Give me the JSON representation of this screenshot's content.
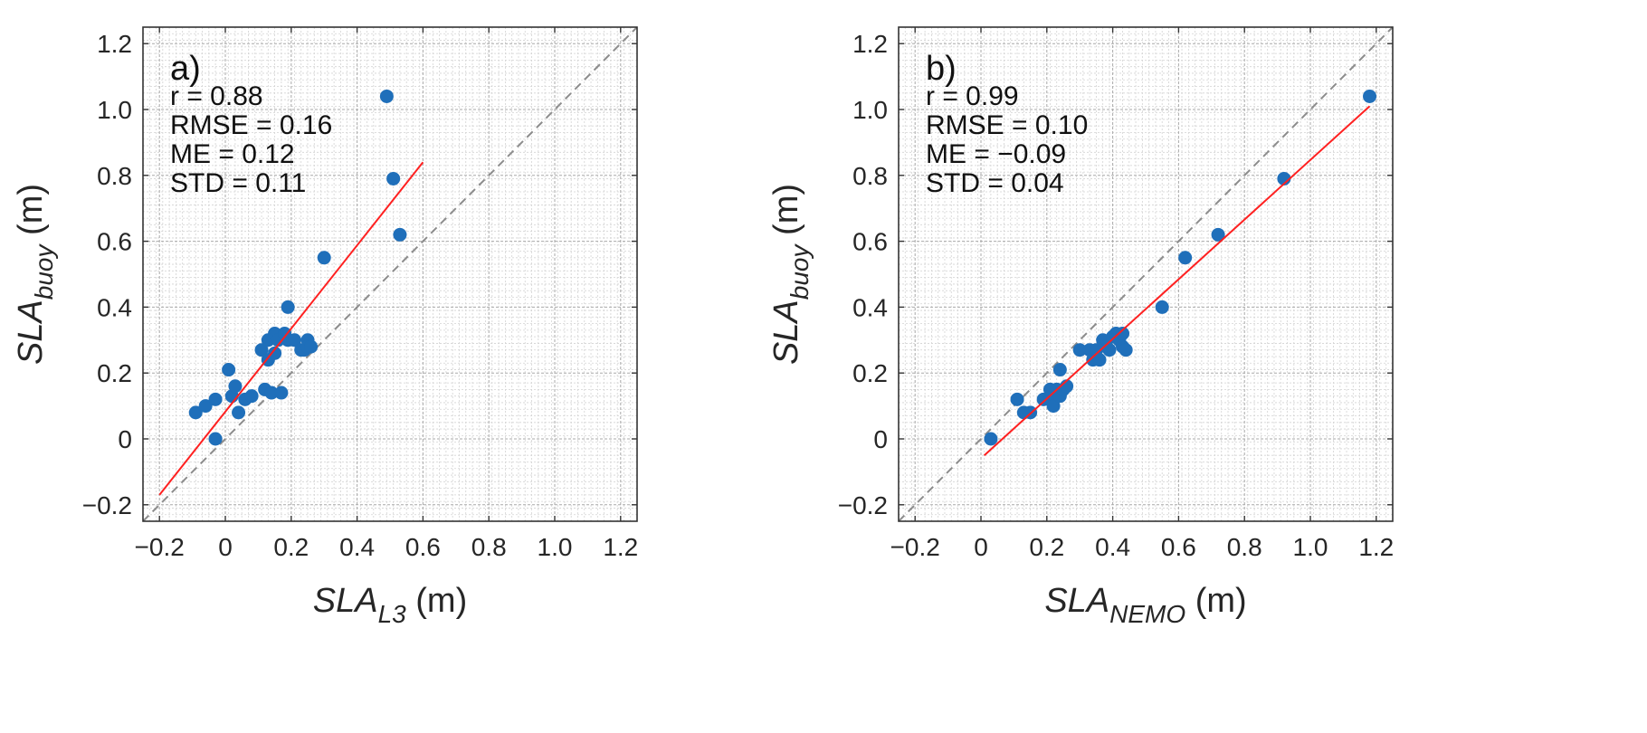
{
  "chart_data": [
    {
      "type": "scatter",
      "panel_label": "a)",
      "stats": [
        "r = 0.88",
        "RMSE = 0.16",
        "ME = 0.12",
        "STD = 0.11"
      ],
      "xlabel": {
        "main": "SLA",
        "sub": "L3",
        "unit": " (m)"
      },
      "ylabel": {
        "main": "SLA",
        "sub": "buoy",
        "unit": " (m)"
      },
      "xlim": [
        -0.25,
        1.25
      ],
      "ylim": [
        -0.25,
        1.25
      ],
      "ticks": [
        -0.2,
        0,
        0.2,
        0.4,
        0.6,
        0.8,
        1.0,
        1.2
      ],
      "tick_labels": [
        "−0.2",
        "0",
        "0.2",
        "0.4",
        "0.6",
        "0.8",
        "1.0",
        "1.2"
      ],
      "grid": true,
      "reference_line": {
        "style": "dashed",
        "color": "#8c8c8c",
        "x": [
          -0.25,
          1.25
        ],
        "y": [
          -0.25,
          1.25
        ]
      },
      "fit_line": {
        "color": "#ff2020",
        "x": [
          -0.2,
          0.6
        ],
        "y": [
          -0.17,
          0.84
        ]
      },
      "marker_color": "#1f6fba",
      "points": [
        [
          -0.09,
          0.08
        ],
        [
          -0.06,
          0.1
        ],
        [
          -0.03,
          0.12
        ],
        [
          -0.03,
          0.0
        ],
        [
          0.01,
          0.21
        ],
        [
          0.02,
          0.13
        ],
        [
          0.03,
          0.16
        ],
        [
          0.04,
          0.08
        ],
        [
          0.06,
          0.12
        ],
        [
          0.08,
          0.13
        ],
        [
          0.11,
          0.27
        ],
        [
          0.12,
          0.15
        ],
        [
          0.13,
          0.24
        ],
        [
          0.13,
          0.3
        ],
        [
          0.14,
          0.14
        ],
        [
          0.15,
          0.32
        ],
        [
          0.15,
          0.26
        ],
        [
          0.16,
          0.3
        ],
        [
          0.17,
          0.14
        ],
        [
          0.18,
          0.32
        ],
        [
          0.19,
          0.4
        ],
        [
          0.19,
          0.3
        ],
        [
          0.21,
          0.3
        ],
        [
          0.23,
          0.27
        ],
        [
          0.24,
          0.27
        ],
        [
          0.25,
          0.3
        ],
        [
          0.25,
          0.28
        ],
        [
          0.26,
          0.28
        ],
        [
          0.3,
          0.55
        ],
        [
          0.49,
          1.04
        ],
        [
          0.51,
          0.79
        ],
        [
          0.53,
          0.62
        ]
      ]
    },
    {
      "type": "scatter",
      "panel_label": "b)",
      "stats": [
        "r = 0.99",
        "RMSE = 0.10",
        "ME = −0.09",
        "STD = 0.04"
      ],
      "xlabel": {
        "main": "SLA",
        "sub": "NEMO",
        "unit": " (m)"
      },
      "ylabel": {
        "main": "SLA",
        "sub": "buoy",
        "unit": " (m)"
      },
      "xlim": [
        -0.25,
        1.25
      ],
      "ylim": [
        -0.25,
        1.25
      ],
      "ticks": [
        -0.2,
        0,
        0.2,
        0.4,
        0.6,
        0.8,
        1.0,
        1.2
      ],
      "tick_labels": [
        "−0.2",
        "0",
        "0.2",
        "0.4",
        "0.6",
        "0.8",
        "1.0",
        "1.2"
      ],
      "grid": true,
      "reference_line": {
        "style": "dashed",
        "color": "#8c8c8c",
        "x": [
          -0.25,
          1.25
        ],
        "y": [
          -0.25,
          1.25
        ]
      },
      "fit_line": {
        "color": "#ff2020",
        "x": [
          0.01,
          1.18
        ],
        "y": [
          -0.05,
          1.01
        ]
      },
      "marker_color": "#1f6fba",
      "points": [
        [
          0.03,
          0.0
        ],
        [
          0.11,
          0.12
        ],
        [
          0.13,
          0.08
        ],
        [
          0.15,
          0.08
        ],
        [
          0.19,
          0.12
        ],
        [
          0.21,
          0.12
        ],
        [
          0.21,
          0.15
        ],
        [
          0.22,
          0.1
        ],
        [
          0.23,
          0.15
        ],
        [
          0.24,
          0.13
        ],
        [
          0.24,
          0.21
        ],
        [
          0.25,
          0.15
        ],
        [
          0.26,
          0.16
        ],
        [
          0.3,
          0.27
        ],
        [
          0.33,
          0.27
        ],
        [
          0.34,
          0.24
        ],
        [
          0.35,
          0.27
        ],
        [
          0.36,
          0.24
        ],
        [
          0.37,
          0.3
        ],
        [
          0.38,
          0.28
        ],
        [
          0.39,
          0.27
        ],
        [
          0.4,
          0.31
        ],
        [
          0.41,
          0.32
        ],
        [
          0.42,
          0.3
        ],
        [
          0.43,
          0.32
        ],
        [
          0.43,
          0.28
        ],
        [
          0.44,
          0.27
        ],
        [
          0.55,
          0.4
        ],
        [
          0.62,
          0.55
        ],
        [
          0.72,
          0.62
        ],
        [
          0.92,
          0.79
        ],
        [
          1.18,
          1.04
        ]
      ]
    }
  ]
}
